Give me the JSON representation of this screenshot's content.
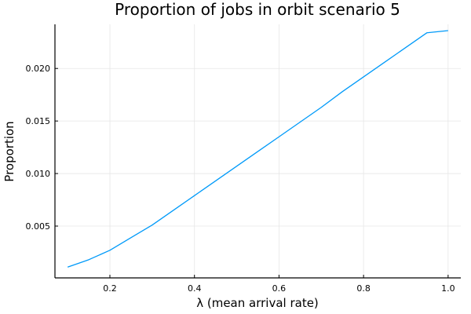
{
  "chart_data": {
    "type": "line",
    "title": "Proportion of jobs in orbit scenario 5",
    "xlabel": "λ (mean arrival rate)",
    "ylabel": "Proportion",
    "xlim": [
      0.07,
      1.03
    ],
    "ylim": [
      7e-05,
      0.0242
    ],
    "xticks": [
      0.2,
      0.4,
      0.6,
      0.8,
      1.0
    ],
    "xtick_labels": [
      "0.2",
      "0.4",
      "0.6",
      "0.8",
      "1.0"
    ],
    "yticks": [
      0.005,
      0.01,
      0.015,
      0.02
    ],
    "ytick_labels": [
      "0.005",
      "0.010",
      "0.015",
      "0.020"
    ],
    "grid": true,
    "legend": "none",
    "series": [
      {
        "color": "#009af9",
        "x": [
          0.1,
          0.15,
          0.2,
          0.25,
          0.3,
          0.35,
          0.4,
          0.45,
          0.5,
          0.55,
          0.6,
          0.65,
          0.7,
          0.75,
          0.8,
          0.85,
          0.9,
          0.95,
          1.0
        ],
        "y": [
          0.0011,
          0.0018,
          0.0027,
          0.0039,
          0.0051,
          0.0065,
          0.0079,
          0.0093,
          0.0107,
          0.0121,
          0.0135,
          0.0149,
          0.0163,
          0.0178,
          0.0192,
          0.0206,
          0.022,
          0.0234,
          0.0236
        ]
      }
    ]
  },
  "colors": {
    "axis": "#000000",
    "grid": "#e6e6e6",
    "background": "#ffffff"
  }
}
